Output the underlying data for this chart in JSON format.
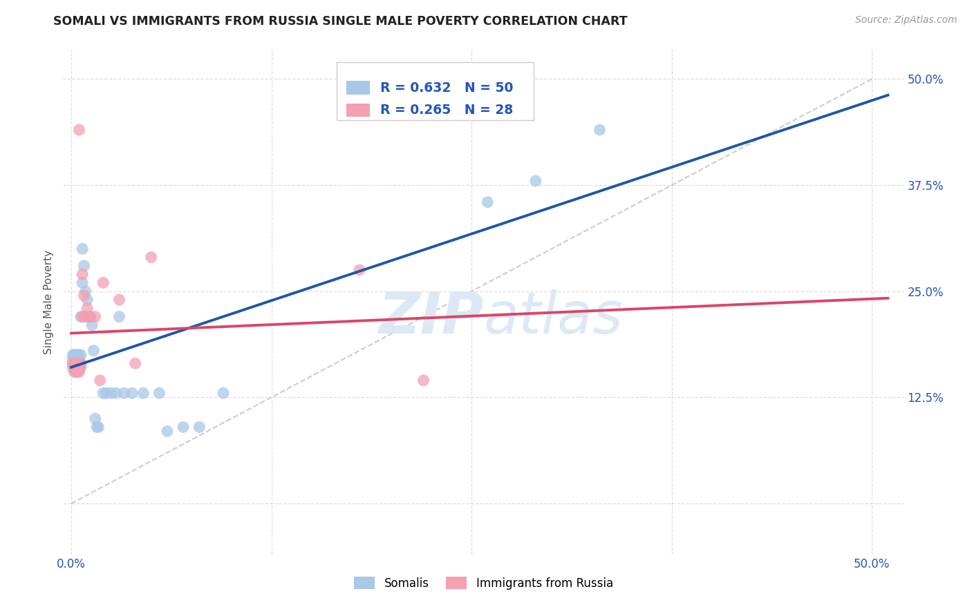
{
  "title": "SOMALI VS IMMIGRANTS FROM RUSSIA SINGLE MALE POVERTY CORRELATION CHART",
  "source": "Source: ZipAtlas.com",
  "ylabel_label": "Single Male Poverty",
  "x_ticks": [
    0.0,
    0.125,
    0.25,
    0.375,
    0.5
  ],
  "x_tick_labels": [
    "0.0%",
    "",
    "",
    "",
    "50.0%"
  ],
  "y_ticks": [
    0.0,
    0.125,
    0.25,
    0.375,
    0.5
  ],
  "y_tick_labels_right": [
    "",
    "12.5%",
    "25.0%",
    "37.5%",
    "50.0%"
  ],
  "xlim": [
    -0.005,
    0.52
  ],
  "ylim": [
    -0.06,
    0.535
  ],
  "somali_color": "#A8C8E8",
  "russia_color": "#F4A0B0",
  "somali_line_color": "#2255AA",
  "russia_line_color": "#DD4466",
  "diagonal_color": "#CCCCCC",
  "background_color": "#FFFFFF",
  "grid_color": "#DDDDDD",
  "legend_text_color": "#2255BB",
  "watermark_color": "#DCE9F5",
  "somali_x": [
    0.001,
    0.001,
    0.001,
    0.002,
    0.002,
    0.002,
    0.002,
    0.003,
    0.003,
    0.003,
    0.003,
    0.004,
    0.004,
    0.004,
    0.005,
    0.005,
    0.005,
    0.005,
    0.006,
    0.006,
    0.006,
    0.007,
    0.007,
    0.008,
    0.008,
    0.009,
    0.01,
    0.011,
    0.012,
    0.013,
    0.014,
    0.015,
    0.016,
    0.017,
    0.02,
    0.022,
    0.025,
    0.028,
    0.03,
    0.033,
    0.038,
    0.045,
    0.055,
    0.06,
    0.07,
    0.08,
    0.095,
    0.26,
    0.29,
    0.33
  ],
  "somali_y": [
    0.175,
    0.17,
    0.165,
    0.17,
    0.165,
    0.175,
    0.16,
    0.17,
    0.165,
    0.175,
    0.17,
    0.165,
    0.175,
    0.17,
    0.165,
    0.175,
    0.16,
    0.17,
    0.175,
    0.165,
    0.22,
    0.26,
    0.3,
    0.22,
    0.28,
    0.25,
    0.24,
    0.22,
    0.22,
    0.21,
    0.18,
    0.1,
    0.09,
    0.09,
    0.13,
    0.13,
    0.13,
    0.13,
    0.22,
    0.13,
    0.13,
    0.13,
    0.13,
    0.085,
    0.09,
    0.09,
    0.13,
    0.355,
    0.38,
    0.44
  ],
  "russia_x": [
    0.001,
    0.001,
    0.002,
    0.002,
    0.002,
    0.003,
    0.003,
    0.003,
    0.004,
    0.004,
    0.005,
    0.005,
    0.006,
    0.006,
    0.007,
    0.007,
    0.008,
    0.009,
    0.01,
    0.012,
    0.015,
    0.018,
    0.02,
    0.03,
    0.04,
    0.05,
    0.18,
    0.22
  ],
  "russia_y": [
    0.165,
    0.16,
    0.155,
    0.165,
    0.16,
    0.155,
    0.165,
    0.16,
    0.155,
    0.165,
    0.44,
    0.155,
    0.165,
    0.16,
    0.22,
    0.27,
    0.245,
    0.22,
    0.23,
    0.22,
    0.22,
    0.145,
    0.26,
    0.24,
    0.165,
    0.29,
    0.275,
    0.145
  ]
}
